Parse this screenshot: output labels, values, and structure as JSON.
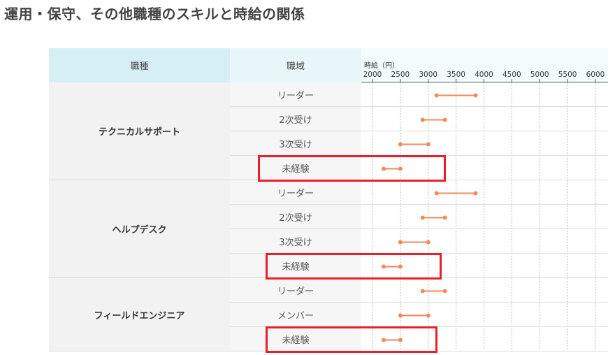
{
  "title": "運用・保守、その他職種のスキルと時給の関係",
  "table": {
    "header_category": "職種",
    "header_level": "職域",
    "axis_label": "時給（円）"
  },
  "colors": {
    "range": "#f4895a",
    "highlight": "#e8202a"
  },
  "chart_data": {
    "type": "range",
    "xlabel": "時給（円）",
    "ylabel": "",
    "xlim": [
      2000,
      6000
    ],
    "x_ticks": [
      2000,
      2500,
      3000,
      3500,
      4000,
      4500,
      5000,
      5500,
      6000
    ],
    "groups": [
      {
        "name": "テクニカルサポート",
        "rows": [
          {
            "level": "リーダー",
            "min": 3150,
            "max": 3850
          },
          {
            "level": "2次受け",
            "min": 2900,
            "max": 3300
          },
          {
            "level": "3次受け",
            "min": 2500,
            "max": 3000
          },
          {
            "level": "未経験",
            "min": 2200,
            "max": 2500,
            "highlighted": true
          }
        ]
      },
      {
        "name": "ヘルプデスク",
        "rows": [
          {
            "level": "リーダー",
            "min": 3150,
            "max": 3850
          },
          {
            "level": "2次受け",
            "min": 2900,
            "max": 3300
          },
          {
            "level": "3次受け",
            "min": 2500,
            "max": 3000
          },
          {
            "level": "未経験",
            "min": 2200,
            "max": 2500,
            "highlighted": true
          }
        ]
      },
      {
        "name": "フィールドエンジニア",
        "rows": [
          {
            "level": "リーダー",
            "min": 2900,
            "max": 3300
          },
          {
            "level": "メンバー",
            "min": 2500,
            "max": 3000
          },
          {
            "level": "未経験",
            "min": 2200,
            "max": 2500,
            "highlighted": true
          }
        ]
      }
    ]
  }
}
